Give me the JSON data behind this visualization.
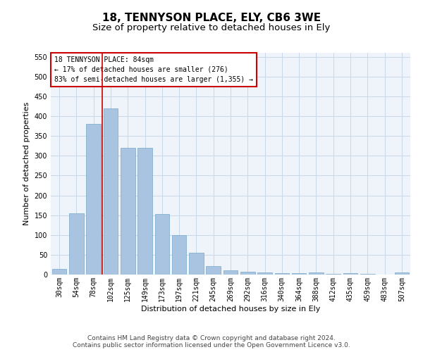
{
  "title1": "18, TENNYSON PLACE, ELY, CB6 3WE",
  "title2": "Size of property relative to detached houses in Ely",
  "xlabel": "Distribution of detached houses by size in Ely",
  "ylabel": "Number of detached properties",
  "categories": [
    "30sqm",
    "54sqm",
    "78sqm",
    "102sqm",
    "125sqm",
    "149sqm",
    "173sqm",
    "197sqm",
    "221sqm",
    "245sqm",
    "269sqm",
    "292sqm",
    "316sqm",
    "340sqm",
    "364sqm",
    "388sqm",
    "412sqm",
    "435sqm",
    "459sqm",
    "483sqm",
    "507sqm"
  ],
  "values": [
    15,
    155,
    380,
    420,
    320,
    320,
    153,
    100,
    55,
    22,
    10,
    7,
    5,
    3,
    3,
    5,
    1,
    4,
    1,
    0,
    5
  ],
  "bar_color": "#a8c4e0",
  "bar_edge_color": "#7aa8cc",
  "grid_color": "#c8d8e8",
  "background_color": "#eef4fa",
  "vline_x_index": 2.5,
  "vline_color": "#cc0000",
  "annotation_title": "18 TENNYSON PLACE: 84sqm",
  "annotation_line1": "← 17% of detached houses are smaller (276)",
  "annotation_line2": "83% of semi-detached houses are larger (1,355) →",
  "annotation_box_color": "#cc0000",
  "annotation_fill_color": "#ffffff",
  "footer1": "Contains HM Land Registry data © Crown copyright and database right 2024.",
  "footer2": "Contains public sector information licensed under the Open Government Licence v3.0.",
  "ylim": [
    0,
    560
  ],
  "title1_fontsize": 11,
  "title2_fontsize": 9.5,
  "xlabel_fontsize": 8,
  "ylabel_fontsize": 8,
  "tick_fontsize": 7,
  "annotation_fontsize": 7,
  "footer_fontsize": 6.5
}
